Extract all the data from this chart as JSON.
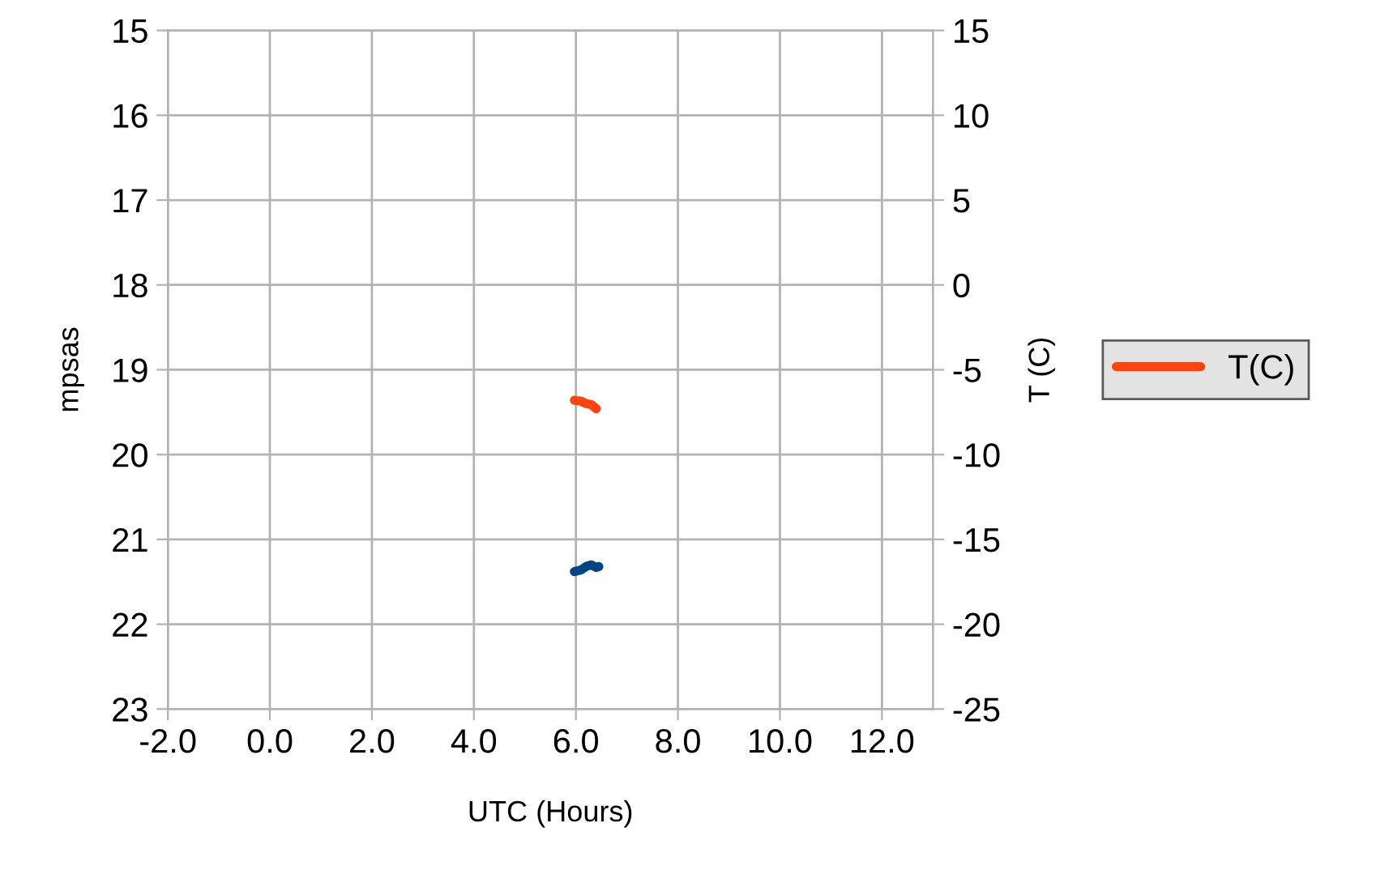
{
  "chart_data": {
    "type": "line",
    "xlabel": "UTC (Hours)",
    "ylabel": "mpsas",
    "y2label": "T (C)",
    "xlim": [
      -2,
      13
    ],
    "xticks": [
      {
        "value": -2,
        "label": "-2.0"
      },
      {
        "value": 0,
        "label": "0.0"
      },
      {
        "value": 2,
        "label": "2.0"
      },
      {
        "value": 4,
        "label": "4.0"
      },
      {
        "value": 6,
        "label": "6.0"
      },
      {
        "value": 8,
        "label": "8.0"
      },
      {
        "value": 10,
        "label": "10.0"
      },
      {
        "value": 12,
        "label": "12.0"
      }
    ],
    "ylim": [
      23,
      15
    ],
    "yticks": [
      15,
      16,
      17,
      18,
      19,
      20,
      21,
      22,
      23
    ],
    "y2lim": [
      -25,
      15
    ],
    "y2ticks": [
      -25,
      -20,
      -15,
      -10,
      -5,
      0,
      5,
      10,
      15
    ],
    "grid": true,
    "legend": "right",
    "line_style": "solid",
    "marker": "none",
    "series": [
      {
        "color": "#004586",
        "x": [
          5.97,
          6.1,
          6.2,
          6.3,
          6.4,
          6.45
        ],
        "values": [
          21.38,
          21.36,
          21.32,
          21.3,
          21.33,
          21.32
        ]
      },
      {
        "name": "T(C)",
        "color": "#ff420e",
        "axis": "y2",
        "x": [
          5.97,
          6.1,
          6.2,
          6.3,
          6.4
        ],
        "values": [
          -6.8,
          -6.85,
          -7.0,
          -7.05,
          -7.3
        ]
      }
    ]
  }
}
